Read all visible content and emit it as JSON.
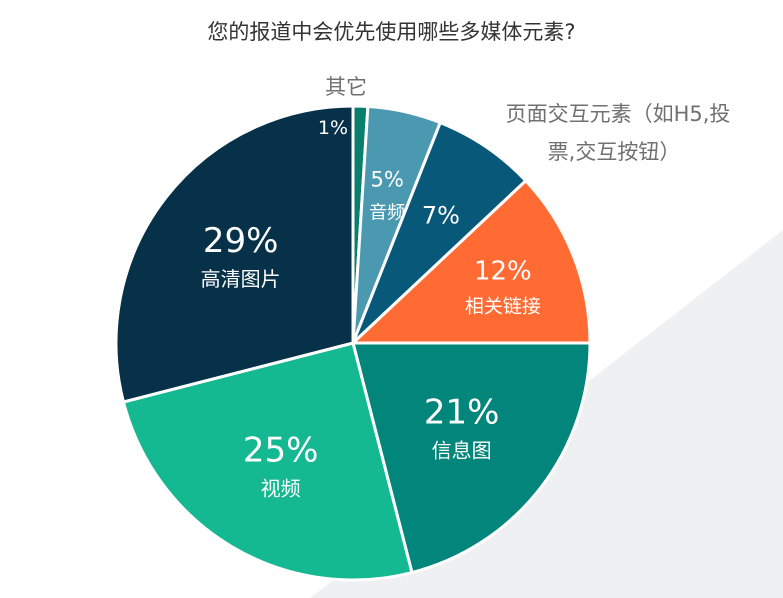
{
  "chart_data": {
    "type": "pie",
    "title": "您的报道中会优先使用哪些多媒体元素?",
    "slices": [
      {
        "label": "其它",
        "value": 1,
        "value_text": "1%",
        "color": "#0b7f6e"
      },
      {
        "label": "音频",
        "value": 5,
        "value_text": "5%",
        "color": "#4b99b0"
      },
      {
        "label": "页面交互元素（如H5,投票,交互按钮）",
        "value": 7,
        "value_text": "7%",
        "color": "#08587a"
      },
      {
        "label": "相关链接",
        "value": 12,
        "value_text": "12%",
        "color": "#ff6b33"
      },
      {
        "label": "信息图",
        "value": 21,
        "value_text": "21%",
        "color": "#02857a"
      },
      {
        "label": "视频",
        "value": 25,
        "value_text": "25%",
        "color": "#14b891"
      },
      {
        "label": "高清图片",
        "value": 29,
        "value_text": "29%",
        "color": "#073049"
      }
    ],
    "outside_label_lines": {
      "other": "其它",
      "interactive_line1": "页面交互元素（如H5,投",
      "interactive_line2": "票,交互按钮）"
    }
  }
}
